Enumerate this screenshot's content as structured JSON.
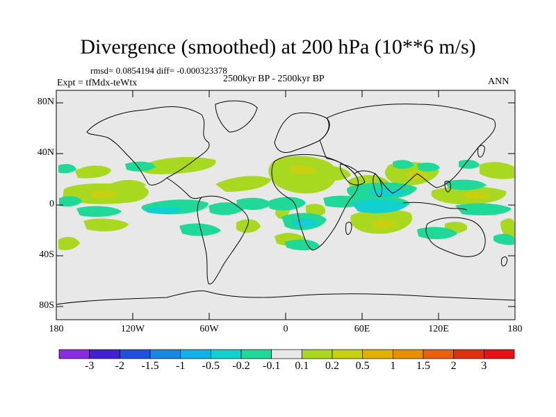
{
  "title": "Divergence (smoothed) at 200 hPa (10**6 m/s)",
  "stats": "rmsd= 0.0854194 diff= -0.000323378",
  "expt": "Expt = tfMdx-teWtx",
  "period": "2500kyr BP - 2500kyr BP",
  "season": "ANN",
  "lat_labels": [
    "80N",
    "40N",
    "0",
    "40S",
    "80S"
  ],
  "lon_labels": [
    "180",
    "120W",
    "60W",
    "0",
    "60E",
    "120E",
    "180"
  ],
  "colorbar": {
    "colors": [
      "#8a2be2",
      "#4020d0",
      "#2050e0",
      "#1a88e0",
      "#10b0e8",
      "#10d0d0",
      "#20d898",
      "#e8e8e8",
      "#a8d820",
      "#c8d010",
      "#e0b000",
      "#e89000",
      "#e86010",
      "#e03010",
      "#e81010"
    ],
    "labels": [
      "-3",
      "-2",
      "-1.5",
      "-1",
      "-0.5",
      "-0.2",
      "-0.1",
      "0.1",
      "0.2",
      "0.5",
      "1",
      "1.5",
      "2",
      "3"
    ]
  },
  "map": {
    "background": "#e8e8e8",
    "lon_range": [
      -180,
      180
    ],
    "lat_range": [
      -90,
      90
    ]
  }
}
